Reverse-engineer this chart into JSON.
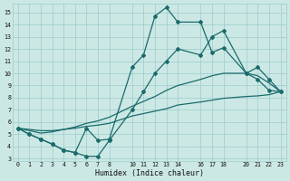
{
  "xlabel": "Humidex (Indice chaleur)",
  "xlim": [
    -0.5,
    23.5
  ],
  "ylim": [
    2.8,
    15.7
  ],
  "yticks": [
    3,
    4,
    5,
    6,
    7,
    8,
    9,
    10,
    11,
    12,
    13,
    14,
    15
  ],
  "xticks": [
    0,
    1,
    2,
    3,
    4,
    5,
    6,
    7,
    8,
    10,
    11,
    12,
    13,
    14,
    16,
    17,
    18,
    20,
    21,
    22,
    23
  ],
  "background_color": "#cce8e5",
  "grid_color": "#99cccc",
  "line_color": "#1a6b6b",
  "line_width": 0.9,
  "marker": "D",
  "marker_size": 2.0,
  "lines": [
    {
      "x": [
        0,
        1,
        2,
        3,
        4,
        5,
        6,
        7,
        8,
        10,
        11,
        12,
        13,
        14,
        16,
        17,
        18,
        20,
        21,
        22,
        23
      ],
      "y": [
        5.5,
        5.0,
        4.6,
        4.2,
        3.7,
        3.5,
        5.5,
        4.5,
        4.6,
        10.5,
        11.5,
        14.7,
        15.4,
        14.2,
        14.2,
        11.7,
        12.1,
        10.0,
        9.5,
        8.6,
        8.5
      ],
      "has_markers": true
    },
    {
      "x": [
        0,
        1,
        2,
        3,
        4,
        5,
        6,
        7,
        8,
        10,
        11,
        12,
        13,
        14,
        16,
        17,
        18,
        20,
        21,
        22,
        23
      ],
      "y": [
        5.5,
        5.3,
        5.1,
        5.2,
        5.4,
        5.6,
        5.9,
        6.1,
        6.4,
        7.3,
        7.7,
        8.1,
        8.6,
        9.0,
        9.5,
        9.8,
        10.0,
        10.0,
        9.8,
        9.2,
        8.5
      ],
      "has_markers": false
    },
    {
      "x": [
        0,
        1,
        2,
        3,
        4,
        5,
        6,
        7,
        8,
        10,
        11,
        12,
        13,
        14,
        16,
        17,
        18,
        20,
        21,
        22,
        23
      ],
      "y": [
        5.5,
        5.4,
        5.3,
        5.3,
        5.4,
        5.5,
        5.65,
        5.75,
        5.9,
        6.5,
        6.7,
        6.9,
        7.1,
        7.4,
        7.65,
        7.8,
        7.95,
        8.1,
        8.15,
        8.25,
        8.5
      ],
      "has_markers": false
    },
    {
      "x": [
        0,
        1,
        2,
        3,
        4,
        5,
        6,
        7,
        8,
        10,
        11,
        12,
        13,
        14,
        16,
        17,
        18,
        20,
        21,
        22,
        23
      ],
      "y": [
        5.5,
        5.0,
        4.6,
        4.2,
        3.7,
        3.5,
        3.2,
        3.2,
        4.5,
        7.0,
        8.5,
        10.0,
        11.0,
        12.0,
        11.5,
        13.0,
        13.5,
        10.0,
        10.5,
        9.5,
        8.5
      ],
      "has_markers": true
    }
  ]
}
